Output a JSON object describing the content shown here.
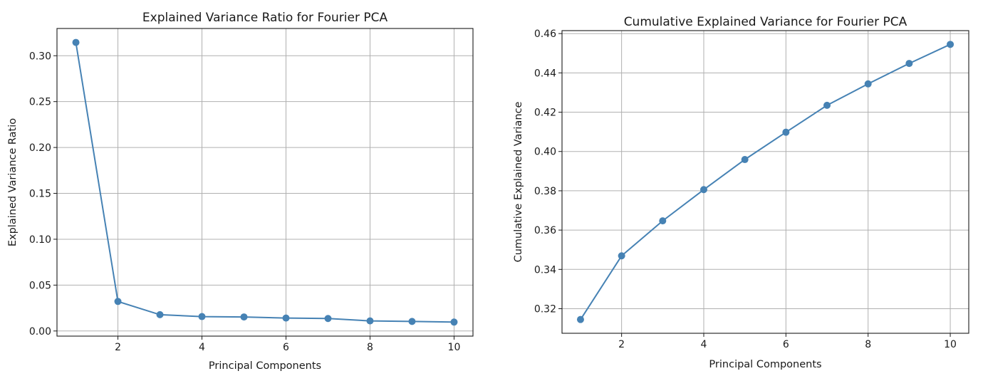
{
  "chart_data": [
    {
      "type": "line",
      "title": "Explained Variance Ratio for Fourier PCA",
      "xlabel": "Principal Components",
      "ylabel": "Explained Variance Ratio",
      "x": [
        1,
        2,
        3,
        4,
        5,
        6,
        7,
        8,
        9,
        10
      ],
      "series": [
        {
          "values": [
            0.3145,
            0.0322,
            0.0178,
            0.0157,
            0.0153,
            0.0141,
            0.0136,
            0.011,
            0.0104,
            0.0097
          ]
        }
      ],
      "xticks": [
        2,
        4,
        6,
        8,
        10
      ],
      "yticks": [
        0.0,
        0.05,
        0.1,
        0.15,
        0.2,
        0.25,
        0.3
      ],
      "ytick_labels": [
        "0.00",
        "0.05",
        "0.10",
        "0.15",
        "0.20",
        "0.25",
        "0.30"
      ],
      "xlim": [
        0.55,
        10.45
      ],
      "ylim": [
        -0.0056,
        0.3297
      ],
      "grid": true,
      "color": "#4682b4"
    },
    {
      "type": "line",
      "title": "Cumulative Explained Variance for Fourier PCA",
      "xlabel": "Principal Components",
      "ylabel": "Cumulative Explained Variance",
      "x": [
        1,
        2,
        3,
        4,
        5,
        6,
        7,
        8,
        9,
        10
      ],
      "series": [
        {
          "values": [
            0.3145,
            0.3469,
            0.3647,
            0.3806,
            0.3959,
            0.4098,
            0.4235,
            0.4344,
            0.4448,
            0.4545
          ]
        }
      ],
      "xticks": [
        2,
        4,
        6,
        8,
        10
      ],
      "yticks": [
        0.32,
        0.34,
        0.36,
        0.38,
        0.4,
        0.42,
        0.44,
        0.46
      ],
      "ytick_labels": [
        "0.32",
        "0.34",
        "0.36",
        "0.38",
        "0.40",
        "0.42",
        "0.44",
        "0.46"
      ],
      "xlim": [
        0.55,
        10.45
      ],
      "ylim": [
        0.3075,
        0.4615
      ],
      "grid": true,
      "color": "#4682b4"
    }
  ]
}
